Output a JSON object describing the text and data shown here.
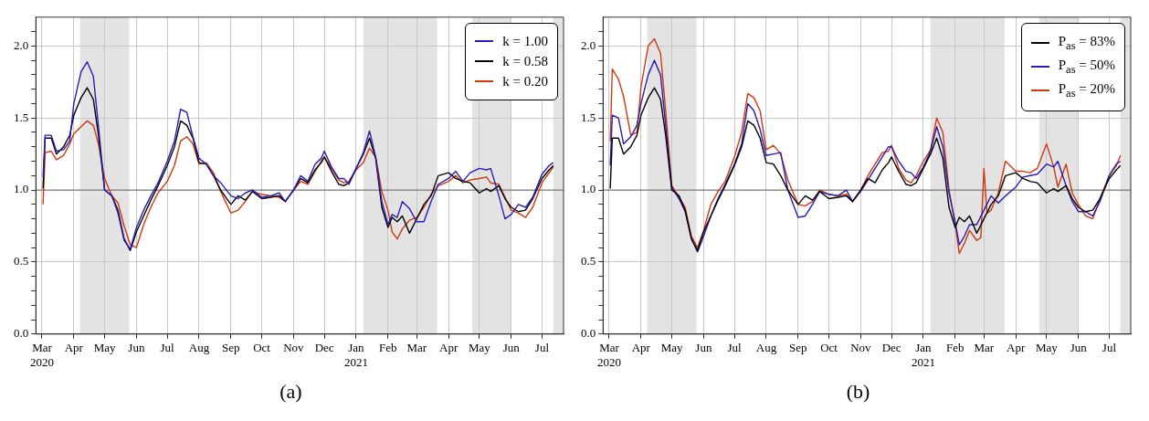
{
  "chart_data": [
    {
      "type": "line",
      "x": [
        "2020-03-02",
        "2020-03-04",
        "2020-03-10",
        "2020-03-15",
        "2020-03-22",
        "2020-03-28",
        "2020-04-01",
        "2020-04-08",
        "2020-04-14",
        "2020-04-20",
        "2020-04-25",
        "2020-05-01",
        "2020-05-08",
        "2020-05-14",
        "2020-05-20",
        "2020-05-26",
        "2020-06-01",
        "2020-06-08",
        "2020-06-15",
        "2020-06-22",
        "2020-07-01",
        "2020-07-08",
        "2020-07-14",
        "2020-07-20",
        "2020-07-26",
        "2020-08-01",
        "2020-08-08",
        "2020-08-15",
        "2020-08-22",
        "2020-09-01",
        "2020-09-08",
        "2020-09-15",
        "2020-09-22",
        "2020-10-01",
        "2020-10-10",
        "2020-10-18",
        "2020-10-24",
        "2020-11-01",
        "2020-11-08",
        "2020-11-15",
        "2020-11-22",
        "2020-11-28",
        "2020-12-01",
        "2020-12-08",
        "2020-12-15",
        "2020-12-20",
        "2020-12-25",
        "2021-01-01",
        "2021-01-08",
        "2021-01-14",
        "2021-01-20",
        "2021-01-26",
        "2021-02-01",
        "2021-02-05",
        "2021-02-10",
        "2021-02-15",
        "2021-02-22",
        "2021-03-01",
        "2021-03-08",
        "2021-03-15",
        "2021-03-22",
        "2021-04-01",
        "2021-04-08",
        "2021-04-15",
        "2021-04-22",
        "2021-05-01",
        "2021-05-08",
        "2021-05-12",
        "2021-05-20",
        "2021-05-26",
        "2021-06-01",
        "2021-06-08",
        "2021-06-15",
        "2021-06-22",
        "2021-07-01",
        "2021-07-08",
        "2021-07-12"
      ],
      "series": [
        {
          "name": "k = 1.00",
          "color": "#2b1cb4",
          "values": [
            1.09,
            1.38,
            1.38,
            1.27,
            1.28,
            1.34,
            1.6,
            1.82,
            1.89,
            1.79,
            1.44,
            1.0,
            0.96,
            0.84,
            0.65,
            0.59,
            0.74,
            0.86,
            0.96,
            1.05,
            1.2,
            1.34,
            1.56,
            1.54,
            1.37,
            1.22,
            1.18,
            1.1,
            1.05,
            0.96,
            0.94,
            0.98,
            1.0,
            0.95,
            0.96,
            0.98,
            0.92,
            1.0,
            1.1,
            1.06,
            1.18,
            1.22,
            1.27,
            1.16,
            1.08,
            1.08,
            1.04,
            1.15,
            1.26,
            1.41,
            1.23,
            0.92,
            0.76,
            0.83,
            0.81,
            0.92,
            0.87,
            0.78,
            0.78,
            0.92,
            1.04,
            1.08,
            1.13,
            1.06,
            1.12,
            1.15,
            1.14,
            1.15,
            0.96,
            0.8,
            0.83,
            0.9,
            0.88,
            0.95,
            1.11,
            1.17,
            1.19
          ]
        },
        {
          "name": "k = 0.58",
          "color": "#000000",
          "values": [
            1.01,
            1.36,
            1.36,
            1.25,
            1.3,
            1.38,
            1.52,
            1.64,
            1.71,
            1.63,
            1.38,
            1.0,
            0.96,
            0.86,
            0.66,
            0.58,
            0.71,
            0.82,
            0.93,
            1.03,
            1.17,
            1.3,
            1.48,
            1.45,
            1.36,
            1.19,
            1.18,
            1.1,
            1.0,
            0.9,
            0.96,
            0.93,
            0.99,
            0.94,
            0.95,
            0.96,
            0.92,
            1.0,
            1.08,
            1.05,
            1.14,
            1.19,
            1.23,
            1.13,
            1.04,
            1.03,
            1.05,
            1.15,
            1.25,
            1.36,
            1.22,
            0.88,
            0.74,
            0.81,
            0.78,
            0.82,
            0.7,
            0.8,
            0.9,
            0.96,
            1.1,
            1.12,
            1.08,
            1.06,
            1.05,
            0.98,
            1.01,
            0.99,
            1.03,
            0.94,
            0.88,
            0.85,
            0.86,
            0.94,
            1.08,
            1.14,
            1.17
          ]
        },
        {
          "name": "k = 0.20",
          "color": "#d0380e",
          "values": [
            0.9,
            1.26,
            1.27,
            1.21,
            1.24,
            1.32,
            1.39,
            1.44,
            1.48,
            1.45,
            1.32,
            1.08,
            0.96,
            0.91,
            0.75,
            0.62,
            0.6,
            0.76,
            0.88,
            0.98,
            1.06,
            1.17,
            1.34,
            1.37,
            1.32,
            1.18,
            1.19,
            1.12,
            0.99,
            0.84,
            0.86,
            0.92,
            0.99,
            0.97,
            0.96,
            0.95,
            0.92,
            1.0,
            1.06,
            1.04,
            1.13,
            1.2,
            1.23,
            1.15,
            1.07,
            1.05,
            1.06,
            1.14,
            1.19,
            1.29,
            1.23,
            0.99,
            0.86,
            0.71,
            0.66,
            0.73,
            0.79,
            0.81,
            0.88,
            0.97,
            1.03,
            1.06,
            1.1,
            1.05,
            1.07,
            1.08,
            1.09,
            1.05,
            1.04,
            0.95,
            0.86,
            0.84,
            0.81,
            0.88,
            1.05,
            1.12,
            1.16
          ]
        }
      ],
      "xlim": [
        "2020-02-24",
        "2021-07-22"
      ],
      "xticks": [
        {
          "value": "2020-03-01",
          "label": "Mar\n2020"
        },
        {
          "value": "2020-04-01",
          "label": "Apr"
        },
        {
          "value": "2020-05-01",
          "label": "May"
        },
        {
          "value": "2020-06-01",
          "label": "Jun"
        },
        {
          "value": "2020-07-01",
          "label": "Jul"
        },
        {
          "value": "2020-08-01",
          "label": "Aug"
        },
        {
          "value": "2020-09-01",
          "label": "Sep"
        },
        {
          "value": "2020-10-01",
          "label": "Oct"
        },
        {
          "value": "2020-11-01",
          "label": "Nov"
        },
        {
          "value": "2020-12-01",
          "label": "Dec"
        },
        {
          "value": "2021-01-01",
          "label": "Jan\n2021"
        },
        {
          "value": "2021-02-01",
          "label": "Feb"
        },
        {
          "value": "2021-03-01",
          "label": "Mar"
        },
        {
          "value": "2021-04-01",
          "label": "Apr"
        },
        {
          "value": "2021-05-01",
          "label": "May"
        },
        {
          "value": "2021-06-01",
          "label": "Jun"
        },
        {
          "value": "2021-07-01",
          "label": "Jul"
        }
      ],
      "ylim": [
        0,
        2.2
      ],
      "yticks": [
        {
          "value": 0,
          "label": "0.0"
        },
        {
          "value": 0.1,
          "label": null
        },
        {
          "value": 0.2,
          "label": null
        },
        {
          "value": 0.3,
          "label": null
        },
        {
          "value": 0.4,
          "label": null
        },
        {
          "value": 0.5,
          "label": "0.5"
        },
        {
          "value": 0.6,
          "label": null
        },
        {
          "value": 0.7,
          "label": null
        },
        {
          "value": 0.8,
          "label": null
        },
        {
          "value": 0.9,
          "label": null
        },
        {
          "value": 1,
          "label": "1.0"
        },
        {
          "value": 1.1,
          "label": null
        },
        {
          "value": 1.2,
          "label": null
        },
        {
          "value": 1.3,
          "label": null
        },
        {
          "value": 1.4,
          "label": null
        },
        {
          "value": 1.5,
          "label": "1.5"
        },
        {
          "value": 1.6,
          "label": null
        },
        {
          "value": 1.7,
          "label": null
        },
        {
          "value": 1.8,
          "label": null
        },
        {
          "value": 1.9,
          "label": null
        },
        {
          "value": 2,
          "label": "2.0"
        },
        {
          "value": 2.1,
          "label": null
        }
      ],
      "ref_lines": [
        {
          "axis": "y",
          "value": 1,
          "label": null,
          "color": "#808080"
        }
      ],
      "bands": [
        {
          "axis": "x",
          "from": "2020-04-07",
          "to": "2020-05-25",
          "label": null,
          "color": "#e3e3e3"
        },
        {
          "axis": "x",
          "from": "2021-01-08",
          "to": "2021-03-21",
          "label": null,
          "color": "#e3e3e3"
        },
        {
          "axis": "x",
          "from": "2021-04-24",
          "to": "2021-06-01",
          "label": null,
          "color": "#e3e3e3"
        },
        {
          "axis": "x",
          "from": "2021-07-12",
          "to": "2021-07-22",
          "label": null,
          "color": "#e3e3e3"
        }
      ],
      "grid": true,
      "legend": "top right",
      "annotations": [
        "(a)"
      ]
    },
    {
      "type": "line",
      "x": [
        "2020-03-02",
        "2020-03-04",
        "2020-03-10",
        "2020-03-15",
        "2020-03-22",
        "2020-03-28",
        "2020-04-01",
        "2020-04-08",
        "2020-04-14",
        "2020-04-20",
        "2020-04-25",
        "2020-05-01",
        "2020-05-08",
        "2020-05-14",
        "2020-05-20",
        "2020-05-26",
        "2020-06-01",
        "2020-06-08",
        "2020-06-15",
        "2020-06-22",
        "2020-07-01",
        "2020-07-08",
        "2020-07-14",
        "2020-07-20",
        "2020-07-26",
        "2020-08-01",
        "2020-08-08",
        "2020-08-15",
        "2020-08-22",
        "2020-09-01",
        "2020-09-08",
        "2020-09-15",
        "2020-09-22",
        "2020-10-01",
        "2020-10-10",
        "2020-10-18",
        "2020-10-24",
        "2020-11-01",
        "2020-11-08",
        "2020-11-15",
        "2020-11-22",
        "2020-11-28",
        "2020-12-01",
        "2020-12-08",
        "2020-12-15",
        "2020-12-20",
        "2020-12-25",
        "2021-01-01",
        "2021-01-08",
        "2021-01-14",
        "2021-01-20",
        "2021-01-26",
        "2021-02-01",
        "2021-02-05",
        "2021-02-10",
        "2021-02-15",
        "2021-02-22",
        "2021-03-01",
        "2021-03-08",
        "2021-03-15",
        "2021-03-22",
        "2021-04-01",
        "2021-04-08",
        "2021-04-15",
        "2021-04-22",
        "2021-05-01",
        "2021-05-08",
        "2021-05-12",
        "2021-05-20",
        "2021-05-26",
        "2021-06-01",
        "2021-06-08",
        "2021-06-15",
        "2021-06-22",
        "2021-07-01",
        "2021-07-08",
        "2021-07-12"
      ],
      "series": [
        {
          "name": "P$_{as}$ = 83%",
          "color": "#000000",
          "values": [
            1.01,
            1.36,
            1.36,
            1.25,
            1.3,
            1.38,
            1.52,
            1.64,
            1.71,
            1.63,
            1.38,
            1.0,
            0.96,
            0.86,
            0.66,
            0.58,
            0.71,
            0.82,
            0.93,
            1.03,
            1.17,
            1.3,
            1.48,
            1.45,
            1.36,
            1.19,
            1.18,
            1.1,
            1.0,
            0.9,
            0.96,
            0.93,
            0.99,
            0.94,
            0.95,
            0.96,
            0.92,
            1.0,
            1.08,
            1.05,
            1.14,
            1.19,
            1.23,
            1.13,
            1.04,
            1.03,
            1.05,
            1.15,
            1.25,
            1.36,
            1.22,
            0.88,
            0.74,
            0.81,
            0.78,
            0.82,
            0.7,
            0.8,
            0.9,
            0.96,
            1.1,
            1.12,
            1.08,
            1.06,
            1.05,
            0.98,
            1.01,
            0.99,
            1.03,
            0.94,
            0.88,
            0.85,
            0.86,
            0.94,
            1.08,
            1.14,
            1.17
          ]
        },
        {
          "name": "P$_{as}$ = 50%",
          "color": "#2b1cb4",
          "values": [
            1.17,
            1.52,
            1.5,
            1.32,
            1.37,
            1.45,
            1.6,
            1.8,
            1.9,
            1.8,
            1.45,
            1.02,
            0.94,
            0.85,
            0.67,
            0.57,
            0.68,
            0.82,
            0.94,
            1.04,
            1.18,
            1.32,
            1.6,
            1.55,
            1.42,
            1.24,
            1.25,
            1.26,
            1.0,
            0.81,
            0.82,
            0.9,
            0.99,
            0.97,
            0.96,
            1.0,
            0.92,
            0.99,
            1.07,
            1.15,
            1.23,
            1.3,
            1.3,
            1.2,
            1.13,
            1.12,
            1.08,
            1.16,
            1.27,
            1.44,
            1.3,
            0.98,
            0.78,
            0.62,
            0.68,
            0.76,
            0.76,
            0.86,
            0.96,
            0.91,
            0.96,
            1.02,
            1.09,
            1.1,
            1.11,
            1.18,
            1.16,
            1.2,
            1.03,
            0.92,
            0.85,
            0.85,
            0.82,
            0.92,
            1.1,
            1.18,
            1.2
          ]
        },
        {
          "name": "P$_{as}$ = 20%",
          "color": "#d0380e",
          "x": [
            "2020-03-02",
            "2020-03-04",
            "2020-03-10",
            "2020-03-15",
            "2020-03-22",
            "2020-03-28",
            "2020-04-01",
            "2020-04-08",
            "2020-04-14",
            "2020-04-20",
            "2020-04-25",
            "2020-05-01",
            "2020-05-08",
            "2020-05-14",
            "2020-05-20",
            "2020-05-26",
            "2020-06-01",
            "2020-06-08",
            "2020-06-15",
            "2020-06-22",
            "2020-07-01",
            "2020-07-08",
            "2020-07-14",
            "2020-07-20",
            "2020-07-26",
            "2020-08-01",
            "2020-08-08",
            "2020-08-15",
            "2020-08-22",
            "2020-09-01",
            "2020-09-08",
            "2020-09-15",
            "2020-09-22",
            "2020-10-01",
            "2020-10-10",
            "2020-10-18",
            "2020-10-24",
            "2020-11-01",
            "2020-11-08",
            "2020-11-15",
            "2020-11-22",
            "2020-11-28",
            "2020-12-01",
            "2020-12-08",
            "2020-12-15",
            "2020-12-20",
            "2020-12-25",
            "2021-01-01",
            "2021-01-08",
            "2021-01-14",
            "2021-01-20",
            "2021-01-26",
            "2021-02-01",
            "2021-02-05",
            "2021-02-10",
            "2021-02-15",
            "2021-02-22",
            "2021-02-26",
            "2021-03-01",
            "2021-03-04",
            "2021-03-08",
            "2021-03-15",
            "2021-03-22",
            "2021-04-01",
            "2021-04-08",
            "2021-04-15",
            "2021-04-22",
            "2021-05-01",
            "2021-05-08",
            "2021-05-12",
            "2021-05-20",
            "2021-05-26",
            "2021-06-01",
            "2021-06-08",
            "2021-06-15",
            "2021-06-22",
            "2021-07-01",
            "2021-07-08",
            "2021-07-12"
          ],
          "values": [
            1.34,
            1.84,
            1.77,
            1.65,
            1.38,
            1.4,
            1.72,
            2.0,
            2.05,
            1.95,
            1.55,
            1.03,
            0.95,
            0.88,
            0.68,
            0.6,
            0.72,
            0.9,
            0.99,
            1.06,
            1.23,
            1.4,
            1.67,
            1.64,
            1.55,
            1.28,
            1.31,
            1.25,
            1.07,
            0.9,
            0.89,
            0.92,
            1.0,
            0.97,
            0.96,
            0.97,
            0.92,
            1.0,
            1.1,
            1.18,
            1.26,
            1.27,
            1.31,
            1.15,
            1.07,
            1.05,
            1.1,
            1.2,
            1.28,
            1.5,
            1.4,
            1.0,
            0.76,
            0.56,
            0.63,
            0.72,
            0.65,
            0.67,
            1.15,
            0.84,
            0.86,
            0.98,
            1.2,
            1.13,
            1.13,
            1.12,
            1.15,
            1.32,
            1.16,
            1.02,
            1.18,
            0.98,
            0.9,
            0.82,
            0.8,
            0.94,
            1.1,
            1.17,
            1.24
          ]
        }
      ],
      "xlim": [
        "2020-02-24",
        "2021-07-22"
      ],
      "xticks": [
        {
          "value": "2020-03-01",
          "label": "Mar\n2020"
        },
        {
          "value": "2020-04-01",
          "label": "Apr"
        },
        {
          "value": "2020-05-01",
          "label": "May"
        },
        {
          "value": "2020-06-01",
          "label": "Jun"
        },
        {
          "value": "2020-07-01",
          "label": "Jul"
        },
        {
          "value": "2020-08-01",
          "label": "Aug"
        },
        {
          "value": "2020-09-01",
          "label": "Sep"
        },
        {
          "value": "2020-10-01",
          "label": "Oct"
        },
        {
          "value": "2020-11-01",
          "label": "Nov"
        },
        {
          "value": "2020-12-01",
          "label": "Dec"
        },
        {
          "value": "2021-01-01",
          "label": "Jan\n2021"
        },
        {
          "value": "2021-02-01",
          "label": "Feb"
        },
        {
          "value": "2021-03-01",
          "label": "Mar"
        },
        {
          "value": "2021-04-01",
          "label": "Apr"
        },
        {
          "value": "2021-05-01",
          "label": "May"
        },
        {
          "value": "2021-06-01",
          "label": "Jun"
        },
        {
          "value": "2021-07-01",
          "label": "Jul"
        }
      ],
      "ylim": [
        0,
        2.2
      ],
      "yticks": [
        {
          "value": 0,
          "label": "0.0"
        },
        {
          "value": 0.1,
          "label": null
        },
        {
          "value": 0.2,
          "label": null
        },
        {
          "value": 0.3,
          "label": null
        },
        {
          "value": 0.4,
          "label": null
        },
        {
          "value": 0.5,
          "label": "0.5"
        },
        {
          "value": 0.6,
          "label": null
        },
        {
          "value": 0.7,
          "label": null
        },
        {
          "value": 0.8,
          "label": null
        },
        {
          "value": 0.9,
          "label": null
        },
        {
          "value": 1,
          "label": "1.0"
        },
        {
          "value": 1.1,
          "label": null
        },
        {
          "value": 1.2,
          "label": null
        },
        {
          "value": 1.3,
          "label": null
        },
        {
          "value": 1.4,
          "label": null
        },
        {
          "value": 1.5,
          "label": "1.5"
        },
        {
          "value": 1.6,
          "label": null
        },
        {
          "value": 1.7,
          "label": null
        },
        {
          "value": 1.8,
          "label": null
        },
        {
          "value": 1.9,
          "label": null
        },
        {
          "value": 2,
          "label": "2.0"
        },
        {
          "value": 2.1,
          "label": null
        }
      ],
      "ref_lines": [
        {
          "axis": "y",
          "value": 1,
          "label": null,
          "color": "#808080"
        }
      ],
      "bands": [
        {
          "axis": "x",
          "from": "2020-04-07",
          "to": "2020-05-25",
          "label": null,
          "color": "#e3e3e3"
        },
        {
          "axis": "x",
          "from": "2021-01-08",
          "to": "2021-03-21",
          "label": null,
          "color": "#e3e3e3"
        },
        {
          "axis": "x",
          "from": "2021-04-24",
          "to": "2021-06-01",
          "label": null,
          "color": "#e3e3e3"
        },
        {
          "axis": "x",
          "from": "2021-07-12",
          "to": "2021-07-22",
          "label": null,
          "color": "#e3e3e3"
        }
      ],
      "grid": true,
      "legend": "top right",
      "annotations": [
        "(b)"
      ]
    }
  ]
}
